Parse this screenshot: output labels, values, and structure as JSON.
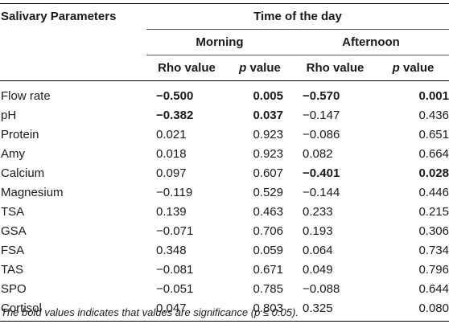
{
  "table": {
    "header": {
      "param_label": "Salivary Parameters",
      "group_label": "Time of the day",
      "periods": [
        "Morning",
        "Afternoon"
      ],
      "rho_label": "Rho value",
      "p_prefix": "p",
      "p_suffix": " value"
    },
    "rows": [
      {
        "param": "Flow rate",
        "m_rho": "−0.500",
        "m_p": "0.005",
        "a_rho": "−0.570",
        "a_p": "0.001",
        "bold": [
          true,
          true,
          true,
          true
        ]
      },
      {
        "param": "pH",
        "m_rho": "−0.382",
        "m_p": "0.037",
        "a_rho": "−0.147",
        "a_p": "0.436",
        "bold": [
          true,
          true,
          false,
          false
        ]
      },
      {
        "param": "Protein",
        "m_rho": "0.021",
        "m_p": "0.923",
        "a_rho": "−0.086",
        "a_p": "0.651",
        "bold": [
          false,
          false,
          false,
          false
        ]
      },
      {
        "param": "Amy",
        "m_rho": "0.018",
        "m_p": "0.923",
        "a_rho": "0.082",
        "a_p": "0.664",
        "bold": [
          false,
          false,
          false,
          false
        ]
      },
      {
        "param": "Calcium",
        "m_rho": "0.097",
        "m_p": "0.607",
        "a_rho": "−0.401",
        "a_p": "0.028",
        "bold": [
          false,
          false,
          true,
          true
        ]
      },
      {
        "param": "Magnesium",
        "m_rho": "−0.119",
        "m_p": "0.529",
        "a_rho": "−0.144",
        "a_p": "0.446",
        "bold": [
          false,
          false,
          false,
          false
        ]
      },
      {
        "param": "TSA",
        "m_rho": "0.139",
        "m_p": "0.463",
        "a_rho": "0.233",
        "a_p": "0.215",
        "bold": [
          false,
          false,
          false,
          false
        ]
      },
      {
        "param": "GSA",
        "m_rho": "−0.071",
        "m_p": "0.706",
        "a_rho": "0.193",
        "a_p": "0.306",
        "bold": [
          false,
          false,
          false,
          false
        ]
      },
      {
        "param": "FSA",
        "m_rho": "0.348",
        "m_p": "0.059",
        "a_rho": "0.064",
        "a_p": "0.734",
        "bold": [
          false,
          false,
          false,
          false
        ]
      },
      {
        "param": "TAS",
        "m_rho": "−0.081",
        "m_p": "0.671",
        "a_rho": "0.049",
        "a_p": "0.796",
        "bold": [
          false,
          false,
          false,
          false
        ]
      },
      {
        "param": "SPO",
        "m_rho": "−0.051",
        "m_p": "0.785",
        "a_rho": "−0.088",
        "a_p": "0.644",
        "bold": [
          false,
          false,
          false,
          false
        ]
      },
      {
        "param": "Cortisol",
        "m_rho": "0.047",
        "m_p": "0.803",
        "a_rho": "0.325",
        "a_p": "0.080",
        "bold": [
          false,
          false,
          false,
          false
        ]
      }
    ],
    "footnote": "The bold values indicates that values are significance (p ≤ 0.05)."
  }
}
